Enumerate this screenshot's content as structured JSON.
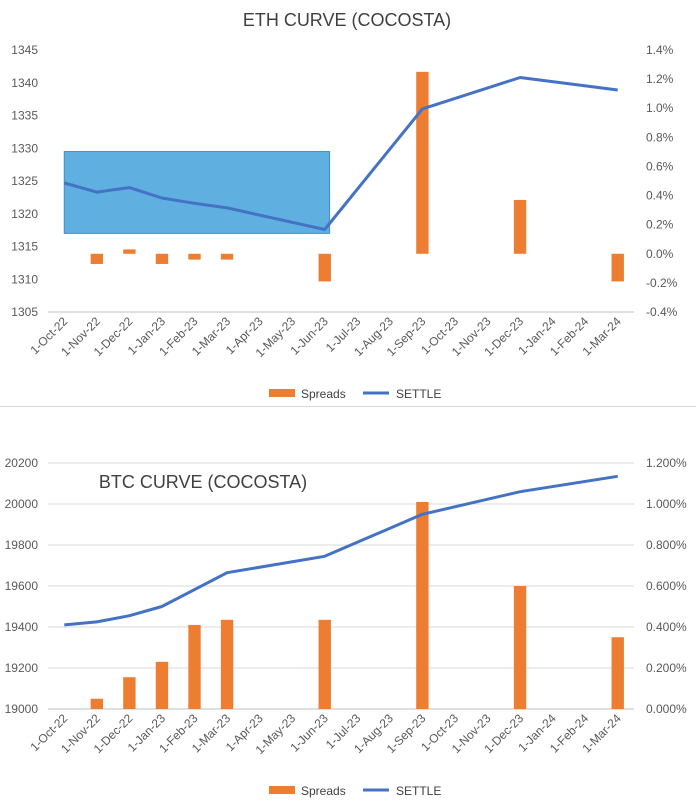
{
  "colors": {
    "spreads": "#ED7D31",
    "settle": "#4472C4",
    "box": "#4EA8DE",
    "grid": "#D9D9D9",
    "text": "#595959"
  },
  "x_categories": [
    "1-Oct-22",
    "1-Nov-22",
    "1-Dec-22",
    "1-Jan-23",
    "1-Feb-23",
    "1-Mar-23",
    "1-Apr-23",
    "1-May-23",
    "1-Jun-23",
    "1-Jul-23",
    "1-Aug-23",
    "1-Sep-23",
    "1-Oct-23",
    "1-Nov-23",
    "1-Dec-23",
    "1-Jan-24",
    "1-Feb-24",
    "1-Mar-24"
  ],
  "chart_data": [
    {
      "type": "bar+line",
      "title": "ETH CURVE (COCOSTA)",
      "y_left_ticks": [
        "1305",
        "1310",
        "1315",
        "1320",
        "1325",
        "1330",
        "1335",
        "1340",
        "1345"
      ],
      "y_left_range": [
        1305,
        1345
      ],
      "y_right_ticks": [
        "-0.4%",
        "-0.2%",
        "0.0%",
        "0.2%",
        "0.4%",
        "0.6%",
        "0.8%",
        "1.0%",
        "1.2%",
        "1.4%"
      ],
      "y_right_range": [
        -0.4,
        1.4
      ],
      "series": [
        {
          "name": "Spreads",
          "kind": "bar",
          "axis": "right",
          "values": [
            null,
            -0.07,
            0.03,
            -0.07,
            -0.04,
            -0.04,
            null,
            null,
            -0.19,
            null,
            null,
            1.25,
            null,
            null,
            0.37,
            null,
            null,
            -0.19
          ]
        },
        {
          "name": "SETTLE",
          "kind": "line",
          "axis": "left",
          "values": [
            1324.7,
            1323.3,
            1324.0,
            1322.4,
            1321.6,
            1320.9,
            null,
            null,
            1317.6,
            null,
            null,
            1336.0,
            null,
            null,
            1340.8,
            null,
            null,
            1338.9
          ]
        }
      ],
      "highlight_box": {
        "from": "1-Oct-22",
        "to": "1-Jun-23",
        "y_from": 1317,
        "y_to": 1329.5
      },
      "legend": [
        "Spreads",
        "SETTLE"
      ],
      "legend_position": "bottom"
    },
    {
      "type": "bar+line",
      "title": "BTC CURVE (COCOSTA)",
      "y_left_ticks": [
        "19000",
        "19200",
        "19400",
        "19600",
        "19800",
        "20000",
        "20200"
      ],
      "y_left_range": [
        19000,
        20200
      ],
      "y_right_ticks": [
        "0.000%",
        "0.200%",
        "0.400%",
        "0.600%",
        "0.800%",
        "1.000%",
        "1.200%"
      ],
      "y_right_range": [
        0,
        1.2
      ],
      "series": [
        {
          "name": "Spreads",
          "kind": "bar",
          "axis": "right",
          "values": [
            null,
            0.05,
            0.155,
            0.23,
            0.41,
            0.435,
            null,
            null,
            0.435,
            null,
            null,
            1.01,
            null,
            null,
            0.6,
            null,
            null,
            0.35
          ]
        },
        {
          "name": "SETTLE",
          "kind": "line",
          "axis": "left",
          "values": [
            19410,
            19425,
            19455,
            19500,
            null,
            19665,
            null,
            null,
            19745,
            null,
            null,
            19950,
            null,
            null,
            20060,
            null,
            null,
            20135
          ]
        }
      ],
      "legend": [
        "Spreads",
        "SETTLE"
      ],
      "legend_position": "bottom"
    }
  ]
}
